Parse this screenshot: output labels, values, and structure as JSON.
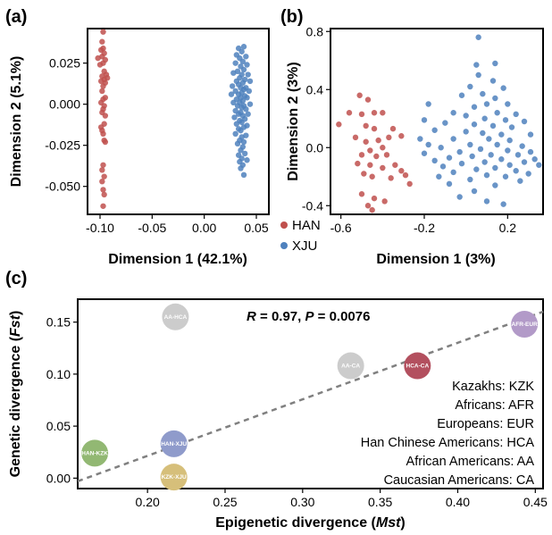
{
  "colors": {
    "han": "#c0504d",
    "xju": "#4f81bd",
    "axis": "#000000",
    "fit_line": "#808080"
  },
  "chart_data": [
    {
      "panel_label": "(a)",
      "type": "scatter",
      "xlabel": "Dimension  1 (42.1%)",
      "ylabel": "Dimension 2 (5.1%)",
      "xlim": [
        -0.112,
        0.062
      ],
      "ylim": [
        -0.067,
        0.046
      ],
      "x_ticks": [
        -0.1,
        -0.05,
        0.0,
        0.05
      ],
      "x_tick_labels": [
        "-0.10",
        "-0.05",
        "0.00",
        "0.05"
      ],
      "y_ticks": [
        -0.05,
        -0.025,
        0.0,
        0.025
      ],
      "y_tick_labels": [
        "-0.050",
        "-0.025",
        "0.000",
        "0.025"
      ],
      "series": [
        {
          "name": "HAN",
          "points": [
            [
              -0.097,
              0.044
            ],
            [
              -0.098,
              0.038
            ],
            [
              -0.097,
              0.034
            ],
            [
              -0.099,
              0.033
            ],
            [
              -0.096,
              0.031
            ],
            [
              -0.098,
              0.029
            ],
            [
              -0.102,
              0.028
            ],
            [
              -0.095,
              0.027
            ],
            [
              -0.097,
              0.025
            ],
            [
              -0.1,
              0.024
            ],
            [
              -0.096,
              0.02
            ],
            [
              -0.094,
              0.018
            ],
            [
              -0.098,
              0.017
            ],
            [
              -0.093,
              0.016
            ],
            [
              -0.096,
              0.015
            ],
            [
              -0.099,
              0.014
            ],
            [
              -0.095,
              0.013
            ],
            [
              -0.097,
              0.011
            ],
            [
              -0.098,
              0.008
            ],
            [
              -0.095,
              0.004
            ],
            [
              -0.097,
              0.003
            ],
            [
              -0.099,
              0.001
            ],
            [
              -0.096,
              -0.001
            ],
            [
              -0.097,
              -0.003
            ],
            [
              -0.098,
              -0.005
            ],
            [
              -0.095,
              -0.007
            ],
            [
              -0.096,
              -0.012
            ],
            [
              -0.099,
              -0.014
            ],
            [
              -0.098,
              -0.016
            ],
            [
              -0.097,
              -0.018
            ],
            [
              -0.096,
              -0.022
            ],
            [
              -0.095,
              -0.023
            ],
            [
              -0.097,
              -0.037
            ],
            [
              -0.098,
              -0.04
            ],
            [
              -0.096,
              -0.044
            ],
            [
              -0.098,
              -0.047
            ],
            [
              -0.097,
              -0.052
            ],
            [
              -0.096,
              -0.055
            ],
            [
              -0.097,
              -0.062
            ]
          ]
        },
        {
          "name": "XJU",
          "points": [
            [
              0.033,
              0.034
            ],
            [
              0.038,
              0.035
            ],
            [
              0.036,
              0.032
            ],
            [
              0.031,
              0.03
            ],
            [
              0.04,
              0.029
            ],
            [
              0.034,
              0.028
            ],
            [
              0.037,
              0.026
            ],
            [
              0.03,
              0.025
            ],
            [
              0.041,
              0.024
            ],
            [
              0.035,
              0.023
            ],
            [
              0.038,
              0.021
            ],
            [
              0.032,
              0.02
            ],
            [
              0.028,
              0.019
            ],
            [
              0.042,
              0.018
            ],
            [
              0.036,
              0.018
            ],
            [
              0.034,
              0.016
            ],
            [
              0.039,
              0.015
            ],
            [
              0.031,
              0.014
            ],
            [
              0.044,
              0.014
            ],
            [
              0.037,
              0.013
            ],
            [
              0.033,
              0.012
            ],
            [
              0.027,
              0.011
            ],
            [
              0.04,
              0.01
            ],
            [
              0.035,
              0.01
            ],
            [
              0.038,
              0.009
            ],
            [
              0.03,
              0.008
            ],
            [
              0.043,
              0.008
            ],
            [
              0.036,
              0.007
            ],
            [
              0.033,
              0.006
            ],
            [
              0.026,
              0.006
            ],
            [
              0.039,
              0.005
            ],
            [
              0.035,
              0.004
            ],
            [
              0.041,
              0.004
            ],
            [
              0.031,
              0.003
            ],
            [
              0.037,
              0.002
            ],
            [
              0.034,
              0.001
            ],
            [
              0.028,
              0.001
            ],
            [
              0.044,
              0.0
            ],
            [
              0.038,
              -0.001
            ],
            [
              0.032,
              -0.001
            ],
            [
              0.036,
              -0.002
            ],
            [
              0.04,
              -0.003
            ],
            [
              0.03,
              -0.004
            ],
            [
              0.035,
              -0.005
            ],
            [
              0.033,
              -0.006
            ],
            [
              0.042,
              -0.006
            ],
            [
              0.037,
              -0.007
            ],
            [
              0.029,
              -0.008
            ],
            [
              0.039,
              -0.009
            ],
            [
              0.034,
              -0.01
            ],
            [
              0.036,
              -0.011
            ],
            [
              0.031,
              -0.012
            ],
            [
              0.041,
              -0.013
            ],
            [
              0.038,
              -0.014
            ],
            [
              0.033,
              -0.015
            ],
            [
              0.035,
              -0.016
            ],
            [
              0.03,
              -0.018
            ],
            [
              0.04,
              -0.019
            ],
            [
              0.036,
              -0.02
            ],
            [
              0.034,
              -0.022
            ],
            [
              0.038,
              -0.023
            ],
            [
              0.032,
              -0.024
            ],
            [
              0.037,
              -0.026
            ],
            [
              0.035,
              -0.028
            ],
            [
              0.039,
              -0.03
            ],
            [
              0.033,
              -0.031
            ],
            [
              0.036,
              -0.033
            ],
            [
              0.041,
              -0.034
            ],
            [
              0.034,
              -0.035
            ],
            [
              0.037,
              -0.037
            ],
            [
              0.035,
              -0.039
            ],
            [
              0.038,
              -0.043
            ]
          ]
        }
      ]
    },
    {
      "panel_label": "(b)",
      "type": "scatter",
      "xlabel": "Dimension 1 (3%)",
      "ylabel": "Dimension 2 (3%)",
      "xlim": [
        -0.65,
        0.37
      ],
      "ylim": [
        -0.46,
        0.82
      ],
      "x_ticks": [
        -0.6,
        -0.2,
        0.2
      ],
      "x_tick_labels": [
        "-0.6",
        "-0.2",
        "0.2"
      ],
      "y_ticks": [
        -0.4,
        0.0,
        0.4,
        0.8
      ],
      "y_tick_labels": [
        "-0.4",
        "0.0",
        "0.4",
        "0.8"
      ],
      "series": [
        {
          "name": "HAN",
          "points": [
            [
              -0.61,
              0.16
            ],
            [
              -0.56,
              0.24
            ],
            [
              -0.51,
              0.36
            ],
            [
              -0.47,
              0.33
            ],
            [
              -0.5,
              0.23
            ],
            [
              -0.44,
              0.24
            ],
            [
              -0.4,
              0.24
            ],
            [
              -0.48,
              0.15
            ],
            [
              -0.44,
              0.13
            ],
            [
              -0.35,
              0.13
            ],
            [
              -0.31,
              0.08
            ],
            [
              -0.37,
              0.07
            ],
            [
              -0.42,
              0.05
            ],
            [
              -0.48,
              0.04
            ],
            [
              -0.53,
              0.07
            ],
            [
              -0.4,
              0.0
            ],
            [
              -0.46,
              -0.02
            ],
            [
              -0.5,
              -0.05
            ],
            [
              -0.43,
              -0.06
            ],
            [
              -0.38,
              -0.05
            ],
            [
              -0.52,
              -0.11
            ],
            [
              -0.46,
              -0.12
            ],
            [
              -0.34,
              -0.12
            ],
            [
              -0.4,
              -0.14
            ],
            [
              -0.31,
              -0.16
            ],
            [
              -0.49,
              -0.18
            ],
            [
              -0.45,
              -0.2
            ],
            [
              -0.36,
              -0.21
            ],
            [
              -0.29,
              -0.19
            ],
            [
              -0.27,
              -0.25
            ],
            [
              -0.5,
              -0.32
            ],
            [
              -0.44,
              -0.35
            ],
            [
              -0.39,
              -0.37
            ],
            [
              -0.47,
              -0.4
            ],
            [
              -0.45,
              -0.43
            ]
          ]
        },
        {
          "name": "XJU",
          "points": [
            [
              0.06,
              0.76
            ],
            [
              0.05,
              0.57
            ],
            [
              0.14,
              0.58
            ],
            [
              0.06,
              0.5
            ],
            [
              0.13,
              0.46
            ],
            [
              0.02,
              0.42
            ],
            [
              0.18,
              0.41
            ],
            [
              0.08,
              0.37
            ],
            [
              -0.02,
              0.36
            ],
            [
              0.14,
              0.34
            ],
            [
              -0.18,
              0.3
            ],
            [
              0.1,
              0.3
            ],
            [
              0.2,
              0.3
            ],
            [
              0.04,
              0.28
            ],
            [
              -0.06,
              0.24
            ],
            [
              0.15,
              0.24
            ],
            [
              0.24,
              0.23
            ],
            [
              0.0,
              0.22
            ],
            [
              0.09,
              0.2
            ],
            [
              -0.2,
              0.19
            ],
            [
              0.19,
              0.19
            ],
            [
              0.28,
              0.18
            ],
            [
              -0.1,
              0.17
            ],
            [
              0.04,
              0.16
            ],
            [
              0.13,
              0.15
            ],
            [
              0.22,
              0.14
            ],
            [
              -0.15,
              0.12
            ],
            [
              0.0,
              0.11
            ],
            [
              0.08,
              0.1
            ],
            [
              0.17,
              0.09
            ],
            [
              0.31,
              0.09
            ],
            [
              -0.22,
              0.06
            ],
            [
              -0.06,
              0.06
            ],
            [
              0.11,
              0.06
            ],
            [
              0.21,
              0.05
            ],
            [
              -0.18,
              0.02
            ],
            [
              0.02,
              0.02
            ],
            [
              0.15,
              0.02
            ],
            [
              0.27,
              0.01
            ],
            [
              -0.12,
              0.0
            ],
            [
              0.07,
              -0.01
            ],
            [
              0.2,
              -0.02
            ],
            [
              -0.03,
              -0.03
            ],
            [
              0.31,
              -0.03
            ],
            [
              -0.2,
              -0.04
            ],
            [
              0.12,
              -0.05
            ],
            [
              0.25,
              -0.05
            ],
            [
              0.03,
              -0.06
            ],
            [
              -0.08,
              -0.07
            ],
            [
              0.17,
              -0.08
            ],
            [
              0.33,
              -0.08
            ],
            [
              -0.15,
              -0.09
            ],
            [
              0.09,
              -0.1
            ],
            [
              0.28,
              -0.1
            ],
            [
              -0.02,
              -0.11
            ],
            [
              0.21,
              -0.12
            ],
            [
              0.35,
              -0.12
            ],
            [
              -0.11,
              -0.13
            ],
            [
              0.14,
              -0.14
            ],
            [
              0.05,
              -0.15
            ],
            [
              0.24,
              -0.16
            ],
            [
              -0.06,
              -0.17
            ],
            [
              0.3,
              -0.18
            ],
            [
              0.1,
              -0.19
            ],
            [
              -0.13,
              -0.2
            ],
            [
              0.19,
              -0.2
            ],
            [
              0.02,
              -0.22
            ],
            [
              0.26,
              -0.23
            ],
            [
              -0.08,
              -0.25
            ],
            [
              0.14,
              -0.26
            ],
            [
              0.04,
              -0.3
            ],
            [
              -0.03,
              -0.34
            ],
            [
              0.1,
              -0.37
            ],
            [
              0.18,
              -0.39
            ]
          ]
        }
      ]
    },
    {
      "panel_label": "(c)",
      "type": "scatter",
      "xlabel_parts": [
        "Epigenetic divergence (",
        "Mst",
        ")"
      ],
      "ylabel_parts": [
        "Genetic divergence (",
        "Fst",
        ")"
      ],
      "xlim": [
        0.155,
        0.455
      ],
      "ylim": [
        -0.01,
        0.172
      ],
      "x_ticks": [
        0.2,
        0.25,
        0.3,
        0.35,
        0.4,
        0.45
      ],
      "x_tick_labels": [
        "0.20",
        "0.25",
        "0.30",
        "0.35",
        "0.40",
        "0.45"
      ],
      "y_ticks": [
        0.0,
        0.05,
        0.1,
        0.15
      ],
      "y_tick_labels": [
        "0.00",
        "0.05",
        "0.10",
        "0.15"
      ],
      "stat_parts": [
        "R",
        " = 0.97, ",
        "P",
        " = 0.0076"
      ],
      "fit_line": {
        "x": [
          0.155,
          0.455
        ],
        "y": [
          -0.003,
          0.16
        ]
      },
      "points": [
        {
          "label": "AA-HCA",
          "x": 0.218,
          "y": 0.155,
          "color": "#cccccc"
        },
        {
          "label": "AFR-EUR",
          "x": 0.443,
          "y": 0.148,
          "color": "#b29ac8"
        },
        {
          "label": "AA-CA",
          "x": 0.331,
          "y": 0.108,
          "color": "#cccccc"
        },
        {
          "label": "HCA-CA",
          "x": 0.374,
          "y": 0.108,
          "color": "#b3505f"
        },
        {
          "label": "HAN-XJU",
          "x": 0.217,
          "y": 0.033,
          "color": "#8f9bcb"
        },
        {
          "label": "HAN-KZK",
          "x": 0.166,
          "y": 0.024,
          "color": "#92b873"
        },
        {
          "label": "KZK-XJU",
          "x": 0.217,
          "y": 0.001,
          "color": "#d6bf7a"
        }
      ],
      "legend": [
        "Kazakhs: KZK",
        "Africans: AFR",
        "Europeans: EUR",
        "Han Chinese Americans: HCA",
        "African Americans: AA",
        "Caucasian Americans: CA"
      ]
    }
  ],
  "shared_legend": [
    "HAN",
    "XJU"
  ]
}
